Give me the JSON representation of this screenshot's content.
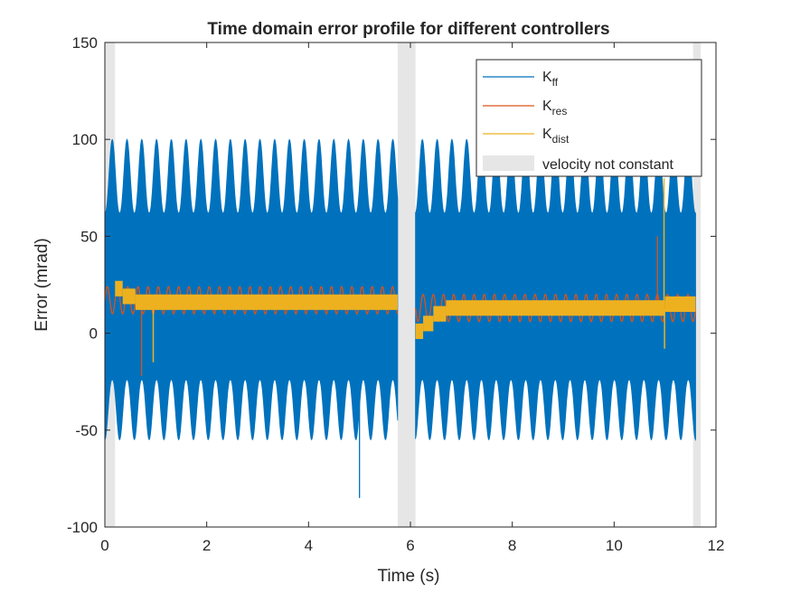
{
  "chart_data": {
    "type": "line",
    "title": "Time domain error profile for different controllers",
    "xlabel": "Time (s)",
    "ylabel": "Error (mrad)",
    "xlim": [
      0,
      12
    ],
    "ylim": [
      -100,
      150
    ],
    "xticks": [
      0,
      2,
      4,
      6,
      8,
      10,
      12
    ],
    "yticks": [
      -100,
      -50,
      0,
      50,
      100,
      150
    ],
    "grid": false,
    "legend_position": "top-right",
    "shaded_regions": {
      "name": "velocity not constant",
      "color": "#e6e6e6",
      "intervals": [
        [
          0.0,
          0.2
        ],
        [
          5.75,
          6.1
        ],
        [
          11.55,
          11.7
        ]
      ]
    },
    "segments": [
      [
        0.0,
        5.75
      ],
      [
        6.1,
        11.6
      ]
    ],
    "series": [
      {
        "name": "K",
        "subscript": "ff",
        "color": "#0072BD",
        "description": "oscillating",
        "center": 22,
        "envelope_upper_range": [
          62,
          100
        ],
        "envelope_lower_range": [
          -55,
          -24
        ],
        "envelope_period_s": 0.29,
        "spikes": [
          {
            "x": 5.0,
            "y": -85
          },
          {
            "x": 4.97,
            "y": 60
          }
        ]
      },
      {
        "name": "K",
        "subscript": "res",
        "color": "#D95319",
        "description": "oscillating",
        "center_segment1": 17,
        "center_segment2": 13,
        "amplitude": 7,
        "period_s": 0.2,
        "spikes": [
          {
            "x": 0.72,
            "y": -22
          },
          {
            "x": 10.85,
            "y": 50
          }
        ]
      },
      {
        "name": "K",
        "subscript": "dist",
        "color": "#EDB120",
        "description": "thick band",
        "levels": [
          {
            "x0": 0.2,
            "x1": 0.35,
            "y": 23
          },
          {
            "x0": 0.35,
            "x1": 0.6,
            "y": 19
          },
          {
            "x0": 0.6,
            "x1": 5.75,
            "y": 16
          },
          {
            "x0": 6.1,
            "x1": 6.25,
            "y": 1
          },
          {
            "x0": 6.25,
            "x1": 6.45,
            "y": 5
          },
          {
            "x0": 6.45,
            "x1": 6.7,
            "y": 10
          },
          {
            "x0": 6.7,
            "x1": 11.0,
            "y": 13
          },
          {
            "x0": 11.0,
            "x1": 11.6,
            "y": 15
          }
        ],
        "spikes": [
          {
            "x": 0.95,
            "y": -15
          },
          {
            "x": 10.98,
            "y": 80
          },
          {
            "x": 10.99,
            "y": -8
          }
        ]
      }
    ]
  }
}
